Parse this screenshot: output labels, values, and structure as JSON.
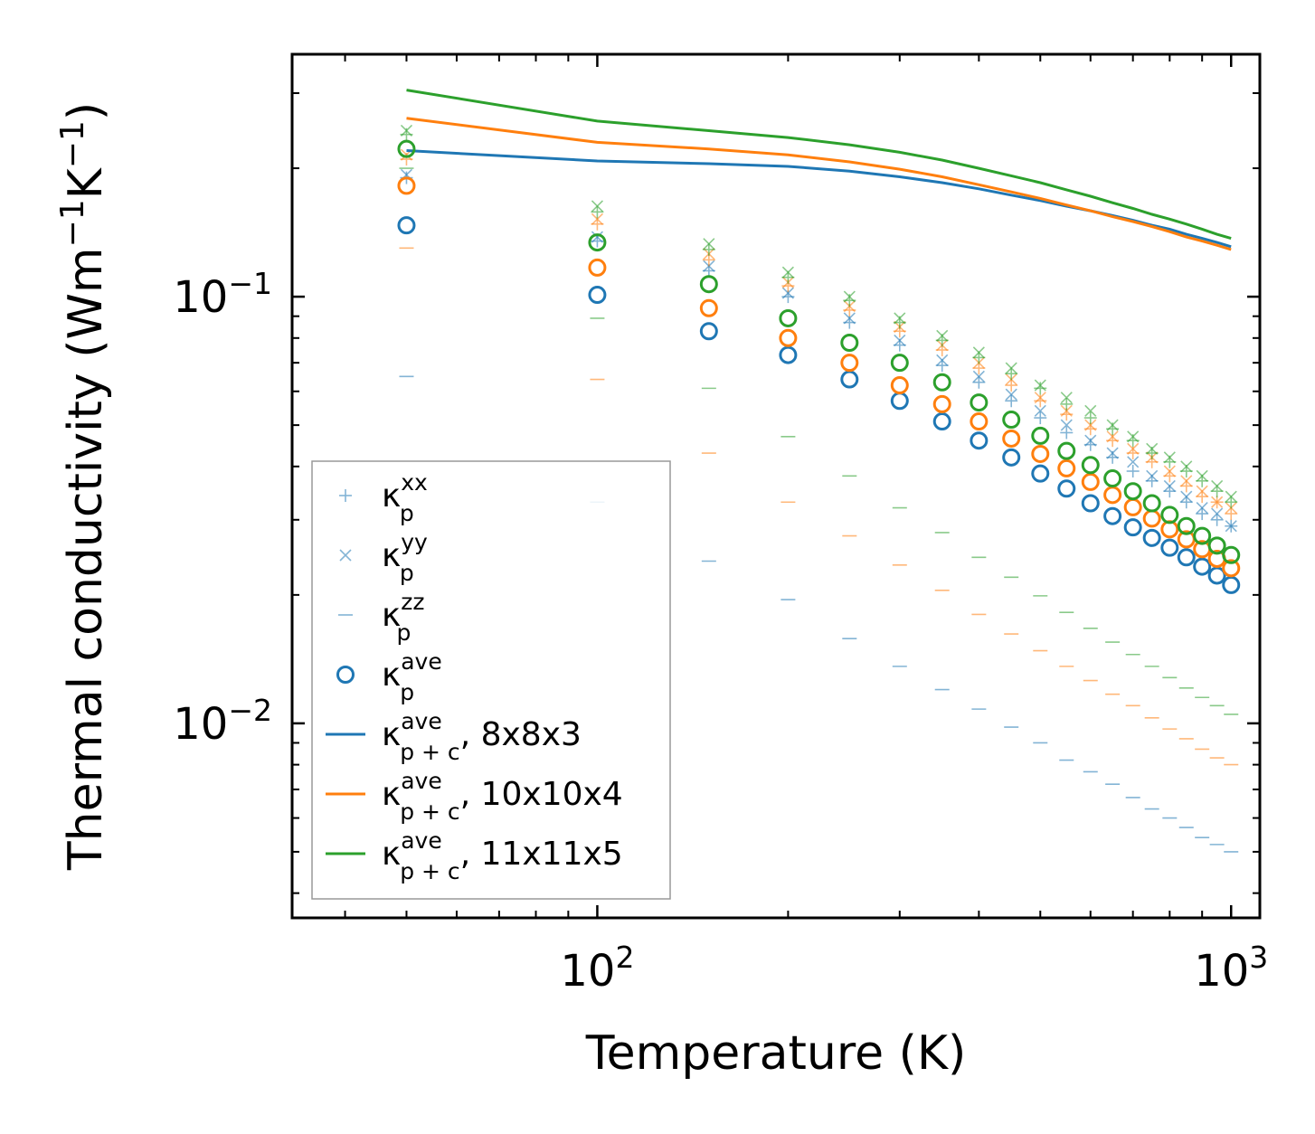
{
  "chart_data": {
    "type": "scatter",
    "title": "",
    "xlabel": "Temperature (K)",
    "ylabel_main": "Thermal conductivity (Wm",
    "ylabel_unit1": "K",
    "ylabel_exp": "−1",
    "ylabel_close": ")",
    "xscale": "log",
    "yscale": "log",
    "xlim": [
      33,
      1110
    ],
    "ylim": [
      0.0035,
      0.37
    ],
    "x_tick_labels": [
      {
        "value": 100,
        "base": "10",
        "exp": "2"
      },
      {
        "value": 1000,
        "base": "10",
        "exp": "3"
      }
    ],
    "y_tick_labels": [
      {
        "value": 0.01,
        "base": "10",
        "exp": "−2"
      },
      {
        "value": 0.1,
        "base": "10",
        "exp": "−1"
      }
    ],
    "colors": {
      "blue": "#1f77b4",
      "orange": "#ff7f0e",
      "green": "#2ca02c"
    },
    "grids": [
      "8x8x3",
      "10x10x4",
      "11x11x5"
    ],
    "temperatures": [
      50,
      100,
      150,
      200,
      250,
      300,
      350,
      400,
      450,
      500,
      550,
      600,
      650,
      700,
      750,
      800,
      850,
      900,
      950,
      1000
    ],
    "series": [
      {
        "grid": "8x8x3",
        "color": "#1f77b4",
        "kxx": [
          0.19,
          0.135,
          0.115,
          0.1,
          0.087,
          0.077,
          0.069,
          0.063,
          0.057,
          0.052,
          0.048,
          0.045,
          0.042,
          0.039,
          0.037,
          0.035,
          0.033,
          0.031,
          0.03,
          0.029
        ],
        "kyy": [
          0.193,
          0.138,
          0.118,
          0.102,
          0.089,
          0.079,
          0.071,
          0.065,
          0.059,
          0.054,
          0.05,
          0.046,
          0.043,
          0.041,
          0.038,
          0.036,
          0.034,
          0.032,
          0.031,
          0.029
        ],
        "kzz": [
          0.065,
          0.033,
          0.024,
          0.0195,
          0.0158,
          0.0136,
          0.012,
          0.0108,
          0.0098,
          0.009,
          0.0082,
          0.0077,
          0.0072,
          0.0067,
          0.0063,
          0.006,
          0.0057,
          0.0054,
          0.0052,
          0.005
        ],
        "kave": [
          0.147,
          0.101,
          0.083,
          0.073,
          0.064,
          0.057,
          0.051,
          0.046,
          0.042,
          0.0385,
          0.0355,
          0.0328,
          0.0306,
          0.0288,
          0.0272,
          0.0258,
          0.0245,
          0.0233,
          0.0222,
          0.0211
        ],
        "kpc": [
          0.22,
          0.208,
          0.205,
          0.202,
          0.197,
          0.191,
          0.185,
          0.179,
          0.173,
          0.168,
          0.163,
          0.159,
          0.155,
          0.151,
          0.147,
          0.144,
          0.14,
          0.137,
          0.134,
          0.131
        ]
      },
      {
        "grid": "10x10x4",
        "color": "#ff7f0e",
        "kxx": [
          0.21,
          0.148,
          0.122,
          0.106,
          0.093,
          0.083,
          0.075,
          0.068,
          0.062,
          0.057,
          0.053,
          0.049,
          0.046,
          0.043,
          0.041,
          0.038,
          0.036,
          0.034,
          0.033,
          0.031
        ],
        "kyy": [
          0.215,
          0.152,
          0.126,
          0.108,
          0.095,
          0.085,
          0.077,
          0.07,
          0.064,
          0.058,
          0.054,
          0.05,
          0.047,
          0.044,
          0.042,
          0.039,
          0.037,
          0.035,
          0.033,
          0.032
        ],
        "kzz": [
          0.13,
          0.064,
          0.043,
          0.033,
          0.0275,
          0.0235,
          0.0205,
          0.018,
          0.0162,
          0.0148,
          0.0136,
          0.0126,
          0.0117,
          0.011,
          0.0103,
          0.0097,
          0.0092,
          0.0087,
          0.0083,
          0.008
        ],
        "kave": [
          0.182,
          0.117,
          0.094,
          0.08,
          0.07,
          0.062,
          0.056,
          0.051,
          0.0465,
          0.0428,
          0.0396,
          0.0368,
          0.0343,
          0.0321,
          0.0302,
          0.0285,
          0.027,
          0.0256,
          0.0243,
          0.0231
        ],
        "kpc": [
          0.262,
          0.23,
          0.222,
          0.215,
          0.207,
          0.199,
          0.191,
          0.183,
          0.176,
          0.17,
          0.164,
          0.159,
          0.154,
          0.15,
          0.146,
          0.142,
          0.138,
          0.135,
          0.132,
          0.129
        ]
      },
      {
        "grid": "11x11x5",
        "color": "#2ca02c",
        "kxx": [
          0.24,
          0.158,
          0.129,
          0.111,
          0.098,
          0.087,
          0.079,
          0.072,
          0.066,
          0.061,
          0.056,
          0.052,
          0.049,
          0.046,
          0.043,
          0.041,
          0.039,
          0.037,
          0.035,
          0.033
        ],
        "kyy": [
          0.245,
          0.163,
          0.133,
          0.114,
          0.1,
          0.089,
          0.081,
          0.074,
          0.068,
          0.062,
          0.058,
          0.054,
          0.05,
          0.047,
          0.044,
          0.042,
          0.04,
          0.038,
          0.036,
          0.034
        ],
        "kzz": [
          0.2,
          0.089,
          0.061,
          0.047,
          0.038,
          0.032,
          0.028,
          0.0245,
          0.022,
          0.0199,
          0.0182,
          0.0167,
          0.0155,
          0.0145,
          0.0136,
          0.0128,
          0.0121,
          0.0115,
          0.011,
          0.0105
        ],
        "kave": [
          0.222,
          0.134,
          0.107,
          0.089,
          0.078,
          0.07,
          0.063,
          0.0565,
          0.0515,
          0.0472,
          0.0435,
          0.0403,
          0.0375,
          0.035,
          0.0328,
          0.0308,
          0.029,
          0.0275,
          0.0261,
          0.0248
        ],
        "kpc": [
          0.305,
          0.258,
          0.245,
          0.236,
          0.227,
          0.218,
          0.209,
          0.2,
          0.192,
          0.185,
          0.178,
          0.172,
          0.166,
          0.161,
          0.156,
          0.152,
          0.148,
          0.144,
          0.14,
          0.137
        ]
      }
    ],
    "legend": {
      "placement": "lower-left",
      "entries": [
        {
          "kind": "plus",
          "symbol": "κ",
          "sup": "xx",
          "sub": "p",
          "suffix": ""
        },
        {
          "kind": "cross",
          "symbol": "κ",
          "sup": "yy",
          "sub": "p",
          "suffix": ""
        },
        {
          "kind": "dash",
          "symbol": "κ",
          "sup": "zz",
          "sub": "p",
          "suffix": ""
        },
        {
          "kind": "circle",
          "symbol": "κ",
          "sup": "ave",
          "sub": "p",
          "suffix": ""
        },
        {
          "kind": "line",
          "color": "#1f77b4",
          "symbol": "κ",
          "sup": "ave",
          "sub": "p + c",
          "suffix": ", 8x8x3"
        },
        {
          "kind": "line",
          "color": "#ff7f0e",
          "symbol": "κ",
          "sup": "ave",
          "sub": "p + c",
          "suffix": ", 10x10x4"
        },
        {
          "kind": "line",
          "color": "#2ca02c",
          "symbol": "κ",
          "sup": "ave",
          "sub": "p + c",
          "suffix": ", 11x11x5"
        }
      ]
    }
  }
}
